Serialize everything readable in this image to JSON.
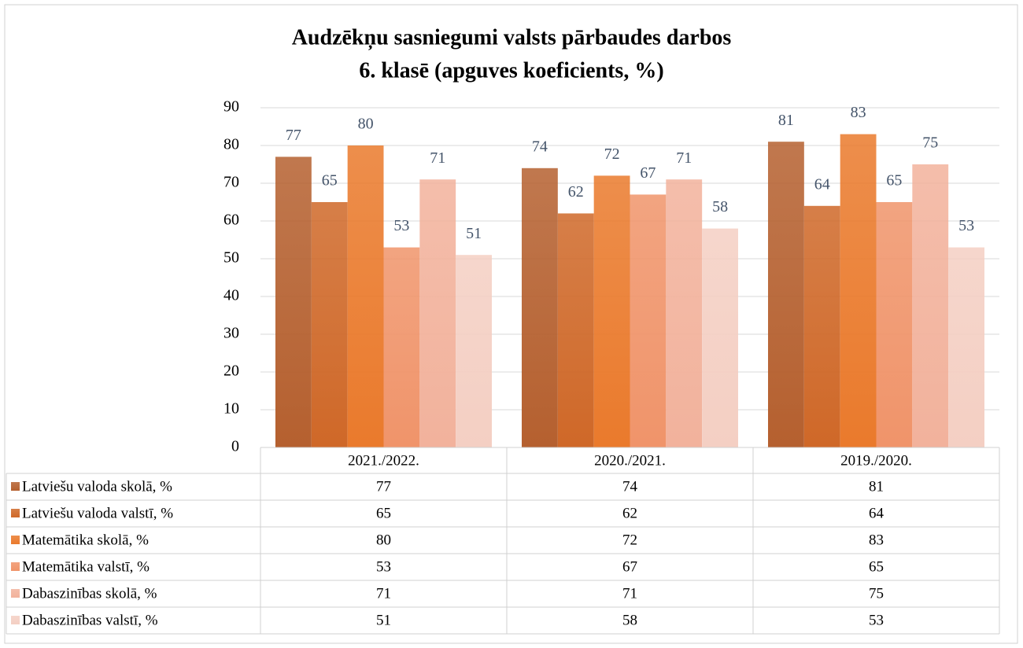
{
  "chart_data": {
    "type": "bar",
    "title": [
      "Audzēkņu sasniegumi valsts pārbaudes darbos",
      "6. klasē (apguves koeficients, %)"
    ],
    "categories": [
      "2021./2022.",
      "2020./2021.",
      "2019./2020."
    ],
    "series": [
      {
        "name": "Latviešu valoda skolā, %",
        "color": "#b5602f",
        "values": [
          77,
          74,
          81
        ]
      },
      {
        "name": "Latviešu valoda valstī, %",
        "color": "#cf6828",
        "values": [
          65,
          62,
          64
        ]
      },
      {
        "name": "Matemātika skolā, %",
        "color": "#ea7a2c",
        "values": [
          80,
          72,
          83
        ]
      },
      {
        "name": "Matemātika valstī, %",
        "color": "#f0946a",
        "values": [
          53,
          67,
          65
        ]
      },
      {
        "name": "Dabaszinības skolā, %",
        "color": "#f2b29c",
        "values": [
          71,
          71,
          75
        ]
      },
      {
        "name": "Dabaszinības valstī, %",
        "color": "#f4cfc3",
        "values": [
          51,
          58,
          53
        ]
      }
    ],
    "ylim": [
      0,
      90
    ],
    "yticks": [
      0,
      10,
      20,
      30,
      40,
      50,
      60,
      70,
      80,
      90
    ],
    "grid": true,
    "legend": "table"
  }
}
